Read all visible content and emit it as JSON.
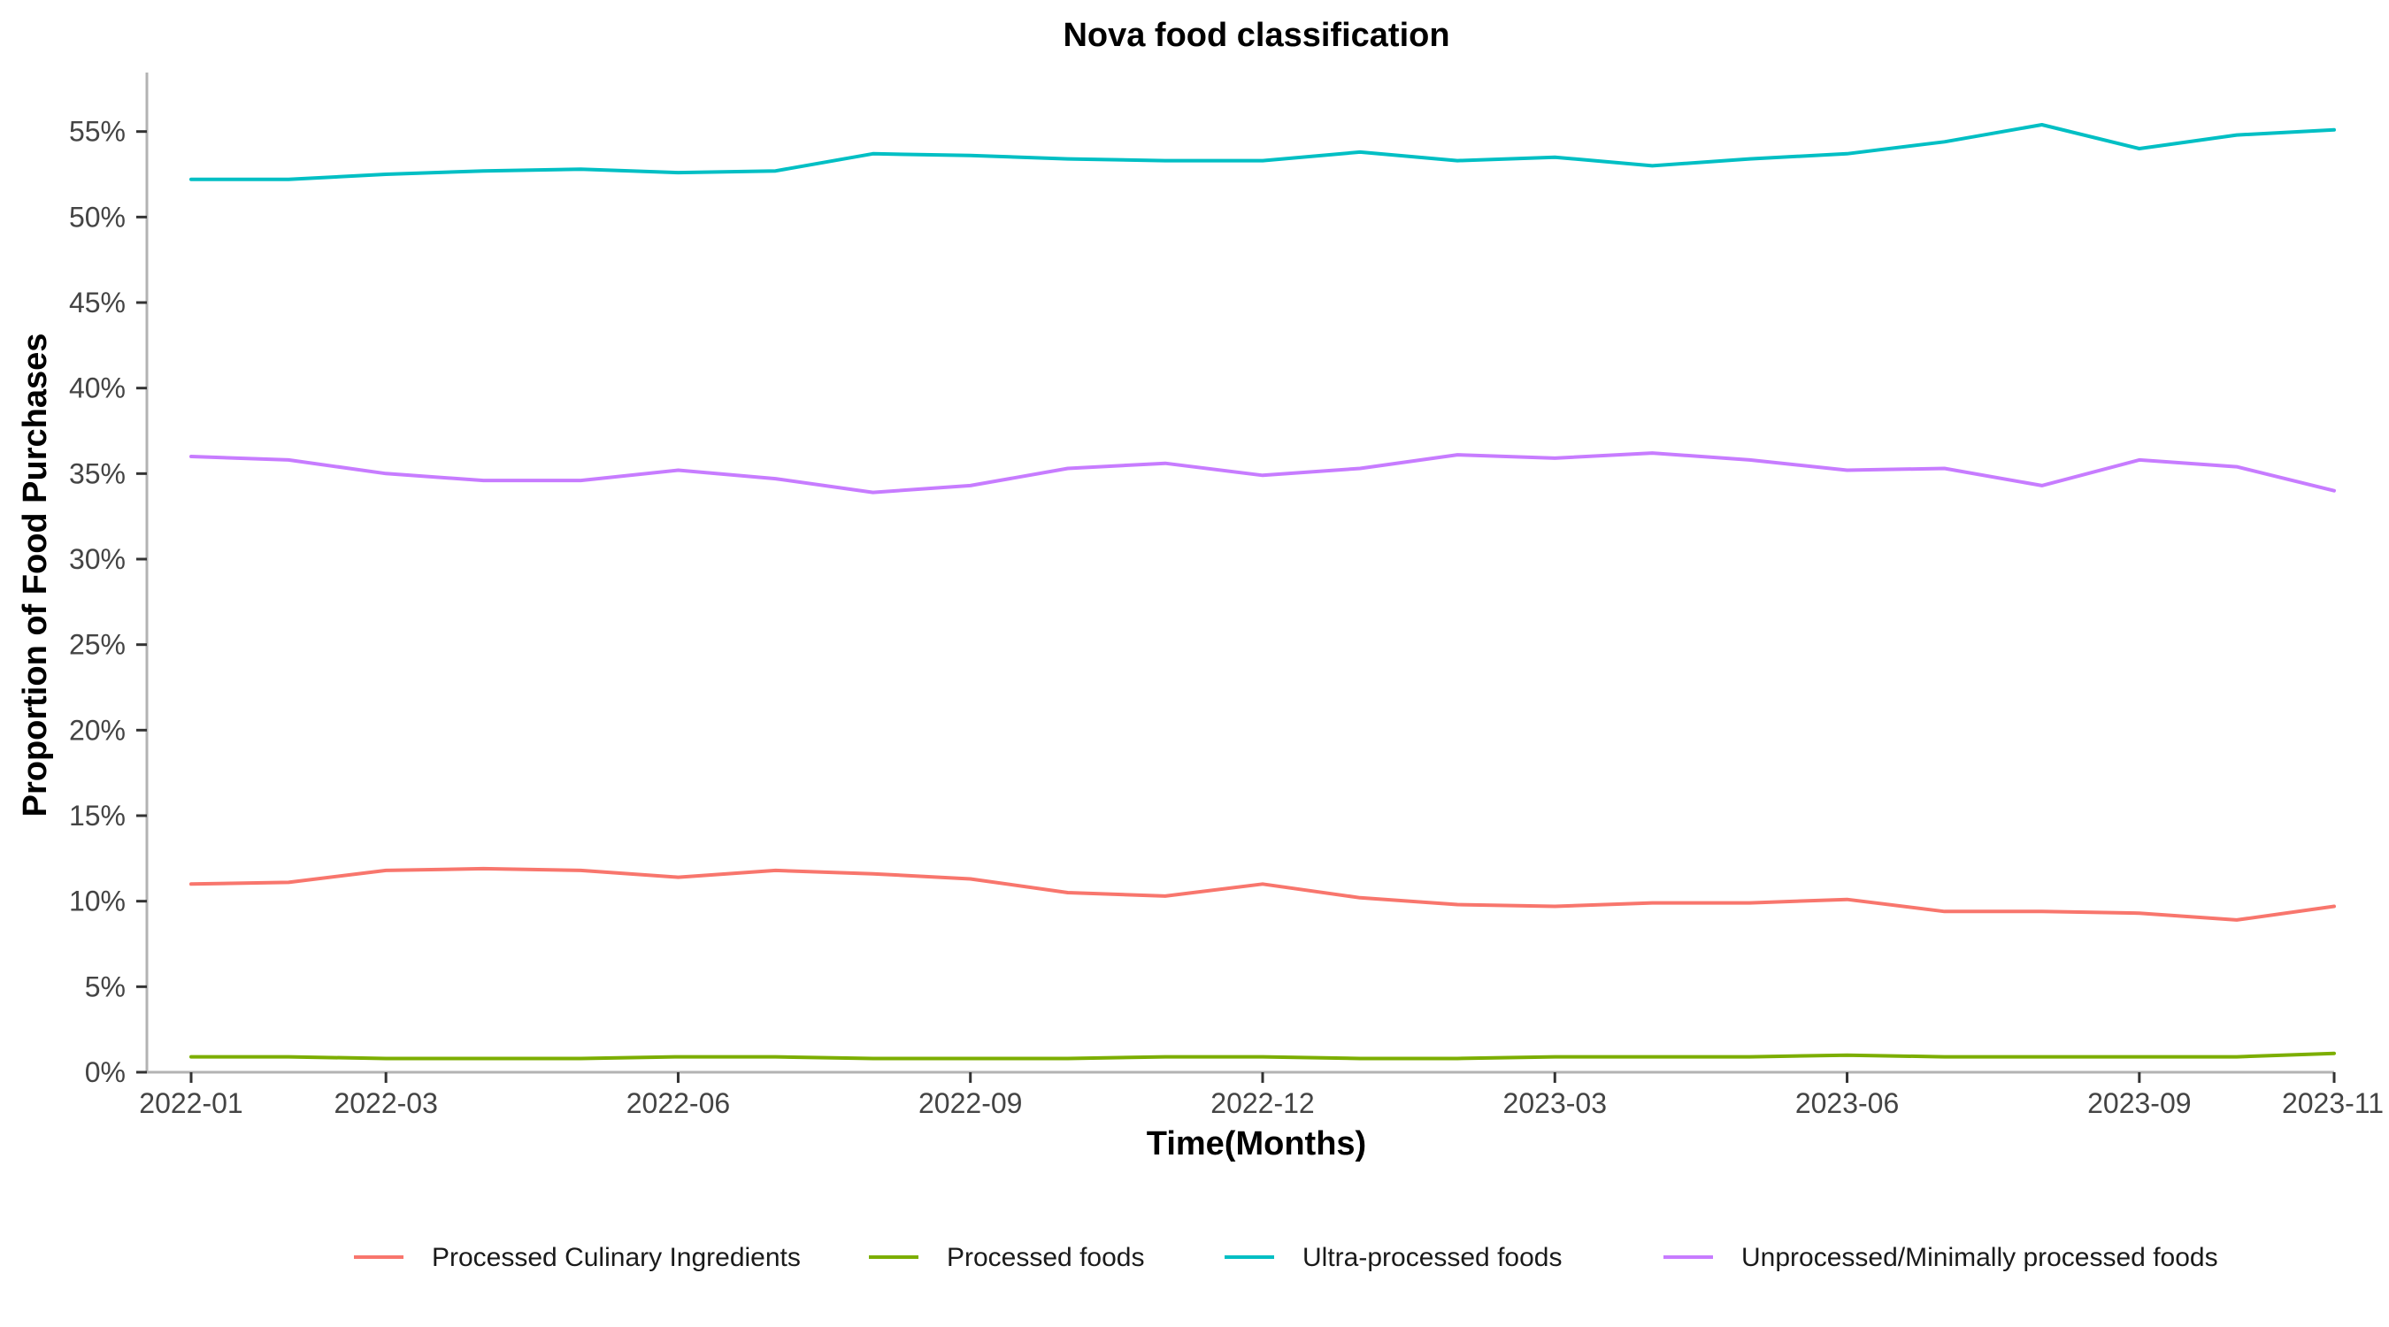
{
  "chart_data": {
    "type": "line",
    "title": "Nova food classification",
    "xlabel": "Time(Months)",
    "ylabel": "Proportion of Food Purchases",
    "x": [
      "2022-01",
      "2022-02",
      "2022-03",
      "2022-04",
      "2022-05",
      "2022-06",
      "2022-07",
      "2022-08",
      "2022-09",
      "2022-10",
      "2022-11",
      "2022-12",
      "2023-01",
      "2023-02",
      "2023-03",
      "2023-04",
      "2023-05",
      "2023-06",
      "2023-07",
      "2023-08",
      "2023-09",
      "2023-10",
      "2023-11"
    ],
    "x_ticks": [
      "2022-01",
      "2022-03",
      "2022-06",
      "2022-09",
      "2022-12",
      "2023-03",
      "2023-06",
      "2023-09",
      "2023-11"
    ],
    "y_ticks": [
      0,
      5,
      10,
      15,
      20,
      25,
      30,
      35,
      40,
      45,
      50,
      55
    ],
    "y_tick_labels": [
      "0%",
      "5%",
      "10%",
      "15%",
      "20%",
      "25%",
      "30%",
      "35%",
      "40%",
      "45%",
      "50%",
      "55%"
    ],
    "ylim": [
      0,
      58
    ],
    "grid": false,
    "legend_position": "bottom",
    "series": [
      {
        "name": "Processed Culinary Ingredients",
        "color": "#F8766D",
        "values": [
          11.0,
          11.1,
          11.8,
          11.9,
          11.8,
          11.4,
          11.8,
          11.6,
          11.3,
          10.5,
          10.3,
          11.0,
          10.2,
          9.8,
          9.7,
          9.9,
          9.9,
          10.1,
          9.4,
          9.4,
          9.3,
          8.9,
          9.7
        ]
      },
      {
        "name": "Processed foods",
        "color": "#7CAE00",
        "values": [
          0.9,
          0.9,
          0.8,
          0.8,
          0.8,
          0.9,
          0.9,
          0.8,
          0.8,
          0.8,
          0.9,
          0.9,
          0.8,
          0.8,
          0.9,
          0.9,
          0.9,
          1.0,
          0.9,
          0.9,
          0.9,
          0.9,
          1.1
        ]
      },
      {
        "name": "Ultra-processed foods",
        "color": "#00BFC4",
        "values": [
          52.2,
          52.2,
          52.5,
          52.7,
          52.8,
          52.6,
          52.7,
          53.7,
          53.6,
          53.4,
          53.3,
          53.3,
          53.8,
          53.3,
          53.5,
          53.0,
          53.4,
          53.7,
          54.4,
          55.4,
          54.0,
          54.8,
          55.1
        ]
      },
      {
        "name": "Unprocessed/Minimally processed foods",
        "color": "#C77CFF",
        "values": [
          36.0,
          35.8,
          35.0,
          34.6,
          34.6,
          35.2,
          34.7,
          33.9,
          34.3,
          35.3,
          35.6,
          34.9,
          35.3,
          36.1,
          35.9,
          36.2,
          35.8,
          35.2,
          35.3,
          34.3,
          35.8,
          35.4,
          34.0
        ]
      }
    ]
  }
}
